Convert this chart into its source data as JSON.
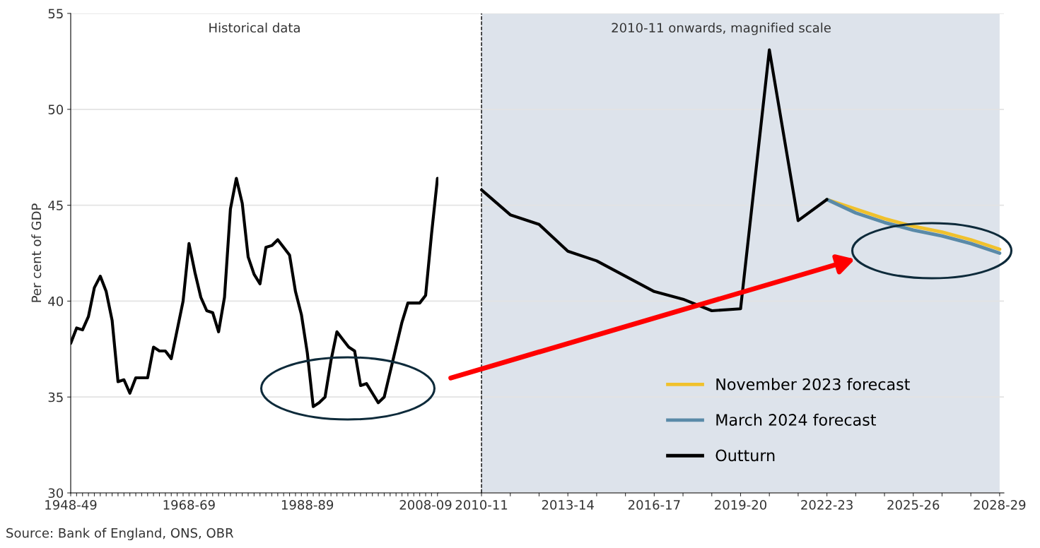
{
  "chart_data": [
    {
      "type": "line",
      "title": "Historical data",
      "ylabel": "Per cent of GDP",
      "categories": [
        "1948-49",
        null,
        null,
        null,
        null,
        null,
        null,
        null,
        null,
        null,
        null,
        null,
        null,
        null,
        null,
        null,
        null,
        null,
        null,
        null,
        "1968-69",
        null,
        null,
        null,
        null,
        null,
        null,
        null,
        null,
        null,
        null,
        null,
        null,
        null,
        null,
        null,
        null,
        null,
        null,
        null,
        "1988-89",
        null,
        null,
        null,
        null,
        null,
        null,
        null,
        null,
        null,
        null,
        null,
        null,
        null,
        null,
        null,
        null,
        null,
        null,
        null,
        "2008-09",
        null,
        null
      ],
      "series": [
        {
          "name": null,
          "color": "#000000",
          "values": [
            37.8,
            38.6,
            38.5,
            39.2,
            40.7,
            41.3,
            40.5,
            39.0,
            35.8,
            35.9,
            35.2,
            36.0,
            36.0,
            36.0,
            37.6,
            37.4,
            37.4,
            37.0,
            38.5,
            40.0,
            43.0,
            41.5,
            40.2,
            39.5,
            39.4,
            38.4,
            40.2,
            44.8,
            46.4,
            45.1,
            42.3,
            41.4,
            40.9,
            42.8,
            42.9,
            43.2,
            42.8,
            42.4,
            40.5,
            39.3,
            37.3,
            34.5,
            34.7,
            35.0,
            36.9,
            38.4,
            38.0,
            37.6,
            37.4,
            35.6,
            35.7,
            35.2,
            34.7,
            35.0,
            36.3,
            37.6,
            38.9,
            39.9,
            39.9,
            39.9,
            40.3,
            43.5,
            46.4
          ]
        }
      ],
      "ylim": [
        30,
        55
      ],
      "yticks": [
        30,
        35,
        40,
        45,
        50,
        55
      ],
      "grid": "y",
      "legend": false,
      "annotations": [
        "Source: Bank of England, ONS, OBR"
      ]
    },
    {
      "type": "line",
      "title": "2010-11 onwards, magnified scale",
      "categories": [
        "2010-11",
        null,
        null,
        "2013-14",
        null,
        null,
        "2016-17",
        null,
        null,
        "2019-20",
        null,
        null,
        "2022-23",
        null,
        null,
        "2025-26",
        null,
        null,
        "2028-29"
      ],
      "series": [
        {
          "name": "November 2023 forecast",
          "color": "#f0c12c",
          "values": [
            null,
            null,
            null,
            null,
            null,
            null,
            null,
            null,
            null,
            null,
            null,
            null,
            45.3,
            44.8,
            44.3,
            43.9,
            43.6,
            43.2,
            42.7
          ]
        },
        {
          "name": "March 2024 forecast",
          "color": "#5a8aa8",
          "values": [
            null,
            null,
            null,
            null,
            null,
            null,
            null,
            null,
            null,
            null,
            null,
            null,
            45.3,
            44.6,
            44.1,
            43.7,
            43.4,
            43.0,
            42.5
          ]
        },
        {
          "name": "Outturn",
          "color": "#000000",
          "values": [
            45.8,
            44.5,
            44.0,
            42.6,
            42.1,
            41.3,
            40.5,
            40.1,
            39.5,
            39.6,
            53.1,
            44.2,
            45.3,
            null,
            null,
            null,
            null,
            null,
            null
          ]
        }
      ],
      "ylim": [
        30,
        55
      ],
      "tick_labels": "x",
      "grid": "y",
      "legend": "bottom",
      "bands": [
        {
          "axis": "x",
          "from": "2010-11",
          "to": "2028-29",
          "color": "#dde3eb"
        }
      ],
      "ref_lines": [
        {
          "axis": "x",
          "value": "2010-11",
          "color": "#000000",
          "line_style": "dashed"
        }
      ]
    }
  ]
}
